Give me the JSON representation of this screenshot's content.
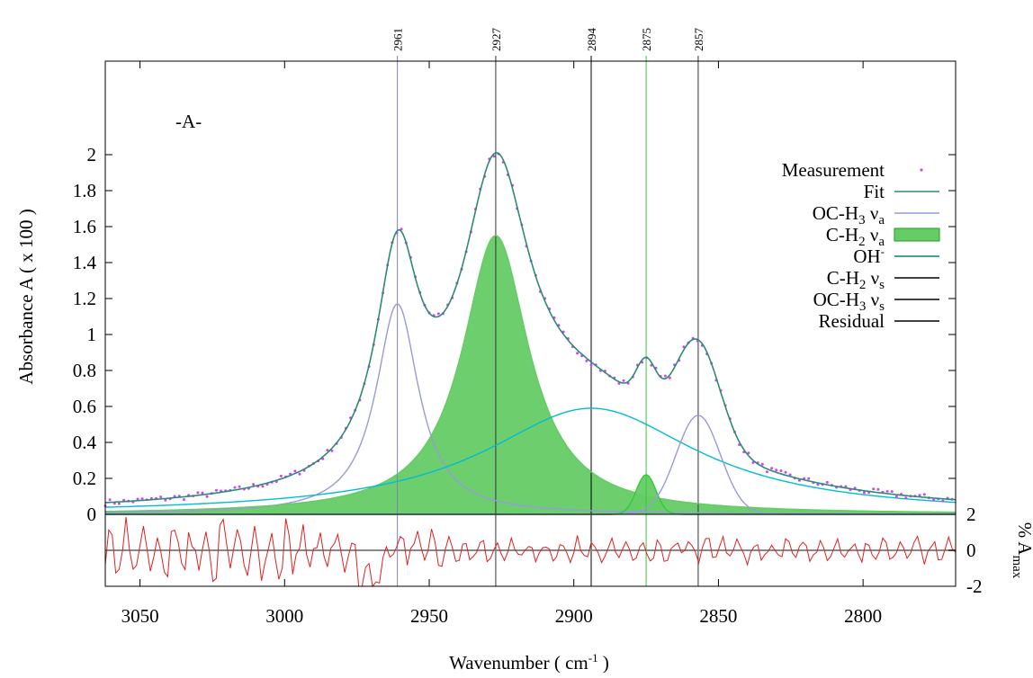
{
  "chart_data": {
    "type": "line",
    "panel_label": "-A-",
    "xlabel": "Wavenumber ( cm-1 )",
    "ylabel": "Absorbance A ( x 100 )",
    "y2label": "% Amax",
    "xlim": [
      3062,
      2768
    ],
    "ylim": [
      0,
      2.2
    ],
    "residual_ylim": [
      -2,
      2
    ],
    "x_ticks": [
      "3050",
      "3000",
      "2950",
      "2900",
      "2850",
      "2800"
    ],
    "y_ticks": [
      "0",
      "0.2",
      "0.4",
      "0.6",
      "0.8",
      "1",
      "1.2",
      "1.4",
      "1.6",
      "1.8",
      "2"
    ],
    "residual_ticks": [
      "2",
      "0",
      "-2"
    ],
    "peak_positions": [
      {
        "label": "2961",
        "x": 2961,
        "color": "#8080c0"
      },
      {
        "label": "2927",
        "x": 2927,
        "color": "#333333"
      },
      {
        "label": "2894",
        "x": 2894,
        "color": "#000000"
      },
      {
        "label": "2875",
        "x": 2875,
        "color": "#33cc33"
      },
      {
        "label": "2857",
        "x": 2857,
        "color": "#333333"
      }
    ],
    "legend": [
      {
        "label": "Measurement",
        "style": "dots",
        "color": "#cc44ff"
      },
      {
        "label": "Fit",
        "style": "line",
        "color": "#2e8b70"
      },
      {
        "label": "OC-H3 νa",
        "style": "line",
        "color": "#9999dd"
      },
      {
        "label": "C-H2 νa",
        "style": "fill",
        "color": "#66cc66"
      },
      {
        "label": "OH-",
        "style": "line",
        "color": "#008080"
      },
      {
        "label": "C-H2 νs",
        "style": "line",
        "color": "#000000"
      },
      {
        "label": "OC-H3 νs",
        "style": "line",
        "color": "#000000"
      },
      {
        "label": "Residual",
        "style": "line",
        "color": "#000000"
      }
    ],
    "components": [
      {
        "name": "OC-H3 νa",
        "center": 2961,
        "amplitude": 1.17,
        "hwhm": 9,
        "shape": "lorentz",
        "color": "#9999dd"
      },
      {
        "name": "C-H2 νa",
        "center": 2927,
        "amplitude": 1.55,
        "hwhm": 14,
        "shape": "lorentz",
        "color": "#66cc66"
      },
      {
        "name": "OH-",
        "center": 2894,
        "amplitude": 0.59,
        "hwhm": 45,
        "shape": "lorentz",
        "color": "#00bcd4"
      },
      {
        "name": "C-H2 νs",
        "center": 2875,
        "amplitude": 0.22,
        "hwhm": 4,
        "shape": "gauss",
        "color": "#33cc33"
      },
      {
        "name": "OC-H3 νs",
        "center": 2857,
        "amplitude": 0.55,
        "hwhm": 9,
        "shape": "gauss",
        "color": "#9999dd"
      }
    ],
    "colors": {
      "measurement": "#cc44ff",
      "fit": "#2e8b70",
      "residual": "#e02020",
      "zero_line": "#888888",
      "fill": "#66cc66"
    }
  }
}
